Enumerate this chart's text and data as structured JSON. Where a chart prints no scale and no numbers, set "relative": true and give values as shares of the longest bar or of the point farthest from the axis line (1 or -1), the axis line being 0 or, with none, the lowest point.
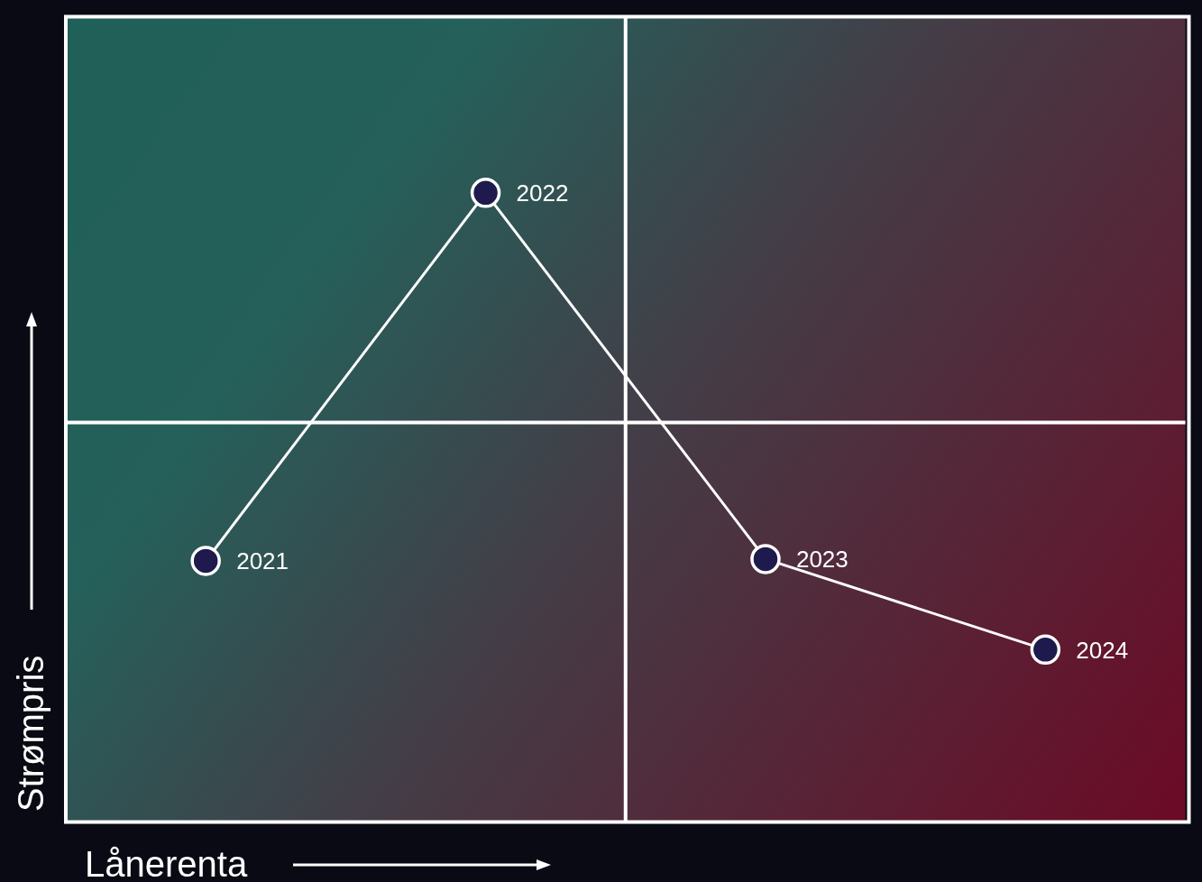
{
  "chart_data": {
    "type": "line",
    "relative": true,
    "xlabel": "Lånerenta",
    "ylabel": "Strømpris",
    "marker": "circle",
    "legend": false,
    "categories": [
      null,
      null,
      null,
      null
    ],
    "series": [
      {
        "color": "#ffffff",
        "values": [
          0.415,
          1,
          0.418,
          0.274
        ]
      }
    ],
    "ref_lines": [
      {
        "axis": "y",
        "value": 0.635,
        "color": "#ffffff"
      }
    ],
    "annotations": [
      "2021",
      "2022",
      "2023",
      "2024"
    ]
  }
}
